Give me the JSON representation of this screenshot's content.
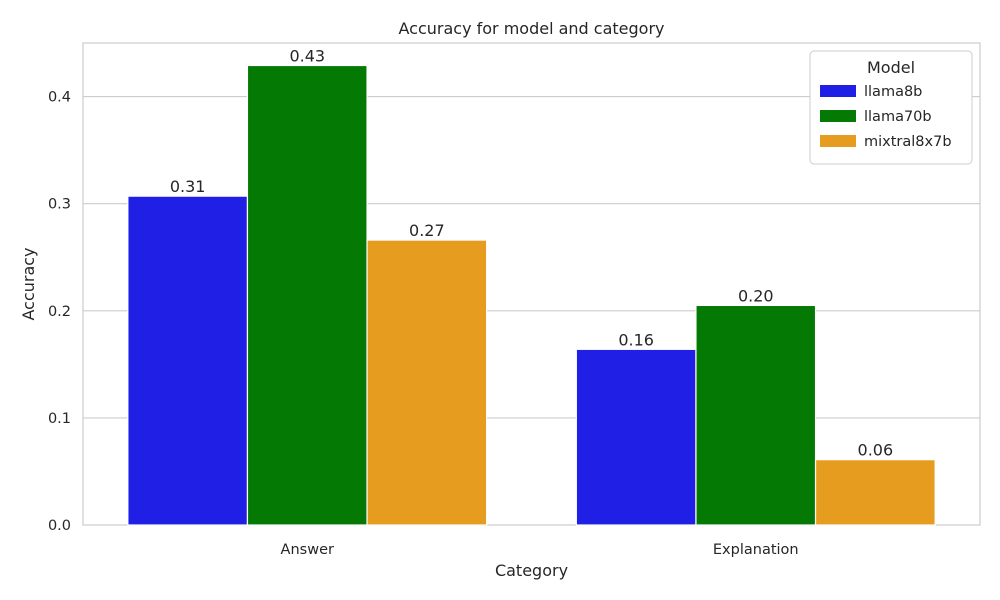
{
  "chart_data": {
    "type": "bar",
    "title": "Accuracy for model and category",
    "xlabel": "Category",
    "ylabel": "Accuracy",
    "categories": [
      "Answer",
      "Explanation"
    ],
    "series": [
      {
        "name": "llama8b",
        "color": "#1f1fe6",
        "values": [
          0.307,
          0.164
        ],
        "labels": [
          "0.31",
          "0.16"
        ]
      },
      {
        "name": "llama70b",
        "color": "#047a04",
        "values": [
          0.429,
          0.205
        ],
        "labels": [
          "0.43",
          "0.20"
        ]
      },
      {
        "name": "mixtral8x7b",
        "color": "#e69c1e",
        "values": [
          0.266,
          0.061
        ],
        "labels": [
          "0.27",
          "0.06"
        ]
      }
    ],
    "ylim": [
      0,
      0.45
    ],
    "yticks": [
      "0.0",
      "0.1",
      "0.2",
      "0.3",
      "0.4"
    ],
    "legend_title": "Model",
    "legend_position": "top-right",
    "grid": true
  }
}
